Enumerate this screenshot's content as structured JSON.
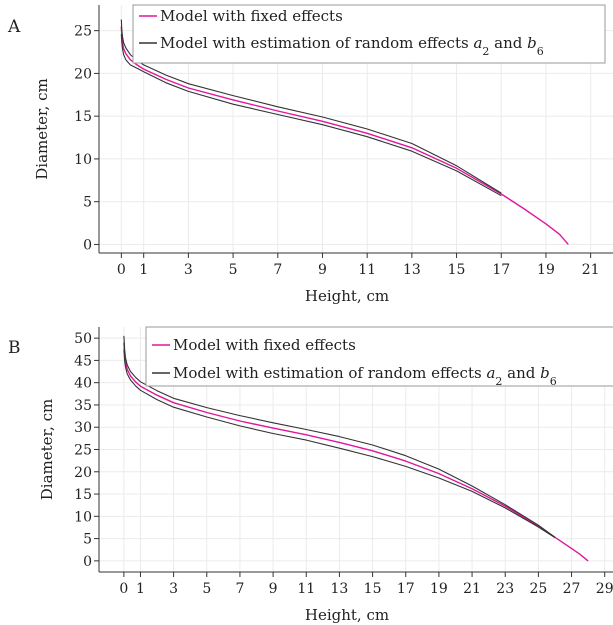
{
  "colors": {
    "fixed": "#e0179e",
    "random": "#333333",
    "grid": "#ebebeb",
    "legend_border": "#9a9a9a"
  },
  "chart_data": [
    {
      "panel": "A",
      "type": "line",
      "xlabel": "Height, cm",
      "ylabel": "Diameter, cm",
      "xlim": [
        -1,
        22
      ],
      "ylim": [
        -1,
        28
      ],
      "xticks": [
        0,
        1,
        3,
        5,
        7,
        9,
        11,
        13,
        15,
        17,
        19,
        21
      ],
      "yticks": [
        0,
        5,
        10,
        15,
        20,
        25
      ],
      "grid": true,
      "legend_position": "top-left",
      "legend": [
        {
          "label": "Model with fixed effects",
          "style": "fixed"
        },
        {
          "label_prefix": "Model with estimation of random effects ",
          "sym1": "a",
          "sub1": "2",
          "mid": " and ",
          "sym2": "b",
          "sub2": "6",
          "style": "random"
        }
      ],
      "series": [
        {
          "style": "fixed",
          "x": [
            0,
            0.02,
            0.05,
            0.1,
            0.2,
            0.4,
            0.7,
            1,
            2,
            3,
            5,
            7,
            9,
            11,
            13,
            15,
            17,
            18,
            19,
            19.6,
            20
          ],
          "y": [
            25.5,
            24.5,
            23.6,
            22.9,
            22.3,
            21.6,
            21,
            20.5,
            19.3,
            18.3,
            16.9,
            15.6,
            14.4,
            13,
            11.3,
            8.9,
            5.9,
            4.2,
            2.4,
            1.2,
            0
          ]
        },
        {
          "style": "random",
          "x": [
            0,
            0.02,
            0.05,
            0.1,
            0.2,
            0.4,
            0.7,
            1,
            2,
            3,
            5,
            7,
            9,
            11,
            13,
            15,
            17
          ],
          "y": [
            26.3,
            25.1,
            24.3,
            23.6,
            23,
            22.2,
            21.5,
            21,
            19.8,
            18.8,
            17.4,
            16.1,
            14.9,
            13.5,
            11.8,
            9.2,
            6
          ]
        },
        {
          "style": "random",
          "x": [
            0,
            0.02,
            0.05,
            0.1,
            0.2,
            0.4,
            0.7,
            1,
            2,
            3,
            5,
            7,
            9,
            11,
            13,
            15,
            17
          ],
          "y": [
            24.6,
            23.6,
            22.9,
            22.2,
            21.6,
            21,
            20.6,
            20.2,
            18.9,
            17.9,
            16.4,
            15.2,
            14,
            12.6,
            10.9,
            8.6,
            5.7
          ]
        }
      ]
    },
    {
      "panel": "B",
      "type": "line",
      "xlabel": "Height, cm",
      "ylabel": "Diameter, cm",
      "xlim": [
        -1.5,
        29.5
      ],
      "ylim": [
        -2.5,
        52.5
      ],
      "xticks": [
        0,
        1,
        3,
        5,
        7,
        9,
        11,
        13,
        15,
        17,
        19,
        21,
        23,
        25,
        27,
        29
      ],
      "yticks": [
        0,
        5,
        10,
        15,
        20,
        25,
        30,
        35,
        40,
        45,
        50
      ],
      "grid": true,
      "legend_position": "top-left",
      "legend": [
        {
          "label": "Model with fixed effects",
          "style": "fixed"
        },
        {
          "label_prefix": "Model with estimation of random effects ",
          "sym1": "a",
          "sub1": "2",
          "mid": " and ",
          "sym2": "b",
          "sub2": "6",
          "style": "random"
        }
      ],
      "series": [
        {
          "style": "fixed",
          "x": [
            0,
            0.05,
            0.1,
            0.2,
            0.4,
            0.7,
            1,
            2,
            3,
            5,
            7,
            9,
            11,
            13,
            15,
            17,
            19,
            21,
            23,
            25,
            26,
            27,
            27.5,
            28
          ],
          "y": [
            49,
            46,
            44.5,
            43,
            41.5,
            40.2,
            39.2,
            37.2,
            35.5,
            33.3,
            31.4,
            29.8,
            28.3,
            26.6,
            24.7,
            22.4,
            19.6,
            16.2,
            12.3,
            7.8,
            5.3,
            2.8,
            1.5,
            0
          ]
        },
        {
          "style": "random",
          "x": [
            0,
            0.05,
            0.1,
            0.2,
            0.4,
            0.7,
            1,
            2,
            3,
            5,
            7,
            9,
            11,
            13,
            15,
            17,
            19,
            21,
            23,
            25,
            26
          ],
          "y": [
            50.5,
            47.3,
            45.6,
            44,
            42.5,
            41.2,
            40.2,
            38.2,
            36.5,
            34.4,
            32.6,
            31,
            29.5,
            27.9,
            26,
            23.6,
            20.6,
            16.8,
            12.6,
            8,
            5.3
          ]
        },
        {
          "style": "random",
          "x": [
            0,
            0.05,
            0.1,
            0.2,
            0.4,
            0.7,
            1,
            2,
            3,
            5,
            7,
            9,
            11,
            13,
            15,
            17,
            19,
            21,
            23,
            25,
            26
          ],
          "y": [
            47.5,
            44.8,
            43.5,
            42,
            40.6,
            39.3,
            38.3,
            36.2,
            34.5,
            32.3,
            30.3,
            28.6,
            27.1,
            25.3,
            23.4,
            21.2,
            18.6,
            15.6,
            11.9,
            7.6,
            5.2
          ]
        }
      ]
    }
  ]
}
